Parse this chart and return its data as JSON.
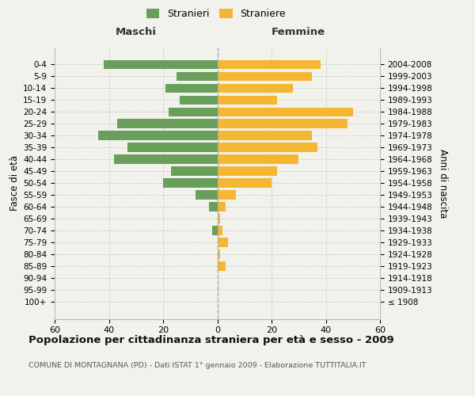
{
  "age_groups": [
    "100+",
    "95-99",
    "90-94",
    "85-89",
    "80-84",
    "75-79",
    "70-74",
    "65-69",
    "60-64",
    "55-59",
    "50-54",
    "45-49",
    "40-44",
    "35-39",
    "30-34",
    "25-29",
    "20-24",
    "15-19",
    "10-14",
    "5-9",
    "0-4"
  ],
  "birth_years": [
    "≤ 1908",
    "1909-1913",
    "1914-1918",
    "1919-1923",
    "1924-1928",
    "1929-1933",
    "1934-1938",
    "1939-1943",
    "1944-1948",
    "1949-1953",
    "1954-1958",
    "1959-1963",
    "1964-1968",
    "1969-1973",
    "1974-1978",
    "1979-1983",
    "1984-1988",
    "1989-1993",
    "1994-1998",
    "1999-2003",
    "2004-2008"
  ],
  "maschi": [
    0,
    0,
    0,
    0,
    0,
    0,
    2,
    0,
    3,
    8,
    20,
    17,
    38,
    33,
    44,
    37,
    18,
    14,
    19,
    15,
    42
  ],
  "femmine": [
    0,
    0,
    0,
    3,
    1,
    4,
    2,
    1,
    3,
    7,
    20,
    22,
    30,
    37,
    35,
    48,
    50,
    22,
    28,
    35,
    38
  ],
  "maschi_color": "#6a9e5b",
  "femmine_color": "#f5b731",
  "background_color": "#f2f2ed",
  "title": "Popolazione per cittadinanza straniera per età e sesso - 2009",
  "subtitle": "COMUNE DI MONTAGNANA (PD) - Dati ISTAT 1° gennaio 2009 - Elaborazione TUTTITALIA.IT",
  "header_left": "Maschi",
  "header_right": "Femmine",
  "ylabel_left": "Fasce di età",
  "ylabel_right": "Anni di nascita",
  "legend_maschi": "Stranieri",
  "legend_femmine": "Straniere",
  "xlim": 60,
  "grid_color": "#cccccc",
  "center_line_color": "#aaaaaa"
}
